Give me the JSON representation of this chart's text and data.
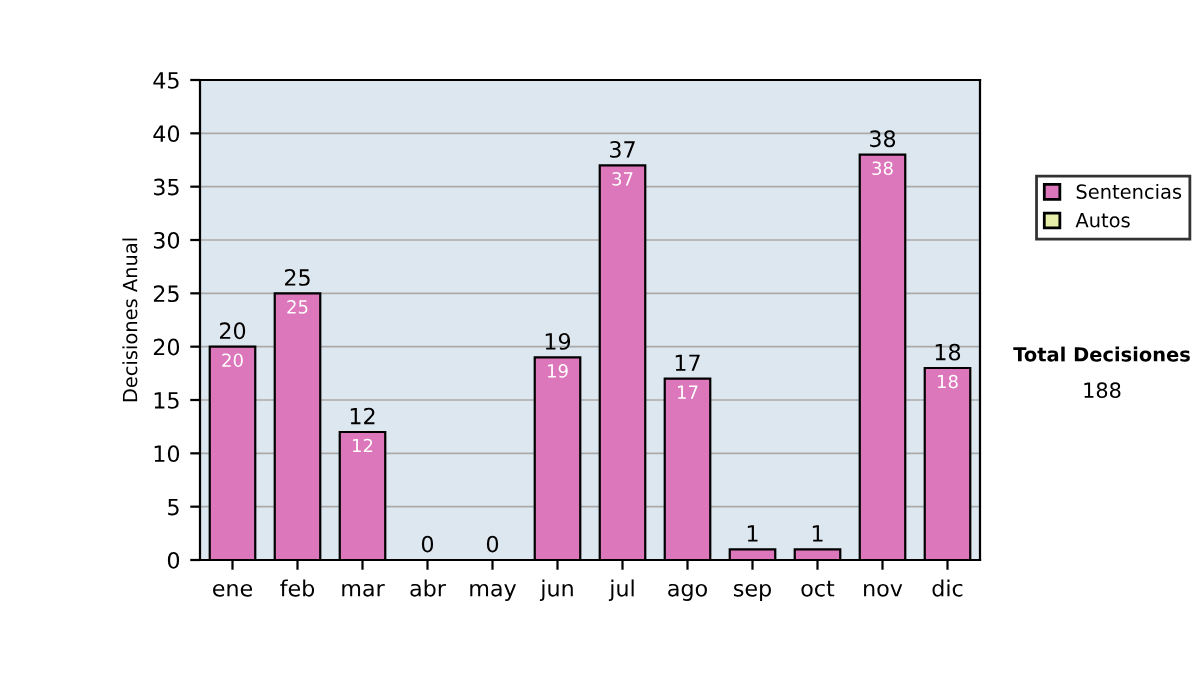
{
  "chart_data": {
    "type": "bar",
    "stacked": true,
    "ylabel": "Decisiones Anual",
    "categories": [
      "ene",
      "feb",
      "mar",
      "abr",
      "may",
      "jun",
      "jul",
      "ago",
      "sep",
      "oct",
      "nov",
      "dic"
    ],
    "series": [
      {
        "name": "Sentencias",
        "color": "#dd77bb",
        "values": [
          20,
          25,
          12,
          0,
          0,
          19,
          37,
          17,
          1,
          1,
          38,
          18
        ],
        "value_labels": [
          "20",
          "25",
          "12",
          null,
          null,
          "19",
          "37",
          "17",
          null,
          null,
          "38",
          "18"
        ]
      },
      {
        "name": "Autos",
        "color": "#e6eeaa",
        "values": [
          0,
          0,
          0,
          0,
          0,
          0,
          0,
          0,
          0,
          0,
          0,
          0
        ]
      }
    ],
    "totals": [
      "20",
      "25",
      "12",
      "0",
      "0",
      "19",
      "37",
      "17",
      "1",
      "1",
      "38",
      "18"
    ],
    "ylim": [
      0,
      45
    ],
    "yticks": [
      0,
      5,
      10,
      15,
      20,
      25,
      30,
      35,
      40,
      45
    ],
    "grid": "y",
    "legend": "right",
    "annotations": [
      "Total Decisiones",
      "188"
    ]
  }
}
